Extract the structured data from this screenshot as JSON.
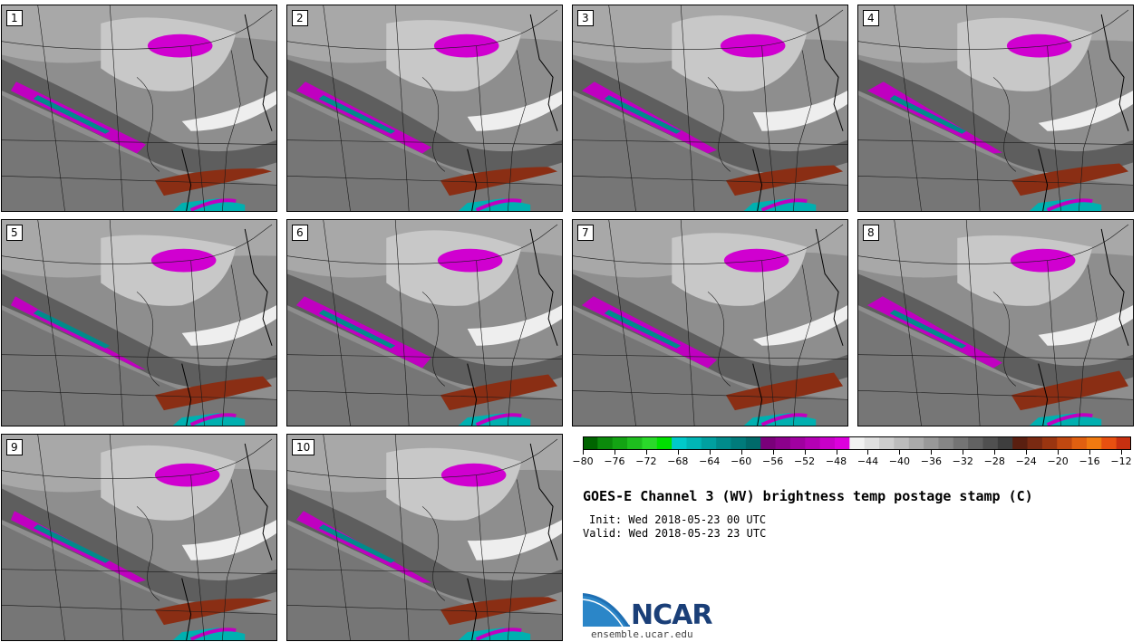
{
  "panels": [
    {
      "label": "1"
    },
    {
      "label": "2"
    },
    {
      "label": "3"
    },
    {
      "label": "4"
    },
    {
      "label": "5"
    },
    {
      "label": "6"
    },
    {
      "label": "7"
    },
    {
      "label": "8"
    },
    {
      "label": "9"
    },
    {
      "label": "10"
    }
  ],
  "colorbar": {
    "ticks": [
      "−80",
      "−76",
      "−72",
      "−68",
      "−64",
      "−60",
      "−56",
      "−52",
      "−48",
      "−44",
      "−40",
      "−36",
      "−32",
      "−28",
      "−24",
      "−20",
      "−16",
      "−12"
    ],
    "colors": [
      "#006400",
      "#0b8a0b",
      "#13a313",
      "#1ebd1e",
      "#2ad82a",
      "#00e000",
      "#00c9c9",
      "#00b5b5",
      "#00a0a0",
      "#008b8b",
      "#007b7b",
      "#006a6a",
      "#7a007a",
      "#8c008c",
      "#a000a0",
      "#b400b4",
      "#c800c8",
      "#dc00dc",
      "#f2f2f2",
      "#e0e0e0",
      "#cecece",
      "#bcbcbc",
      "#aaaaaa",
      "#989898",
      "#868686",
      "#747474",
      "#626262",
      "#505050",
      "#3e3e3e",
      "#5a1f10",
      "#7a2a12",
      "#9a3510",
      "#c04810",
      "#e06010",
      "#f07a10",
      "#e85010",
      "#c83010"
    ]
  },
  "title": "GOES-E Channel 3 (WV) brightness temp postage stamp (C)",
  "init": "Init: Wed 2018-05-23 00 UTC",
  "valid": "Valid: Wed 2018-05-23 23 UTC",
  "logo": {
    "text": "NCAR",
    "url": "ensemble.ucar.edu"
  }
}
